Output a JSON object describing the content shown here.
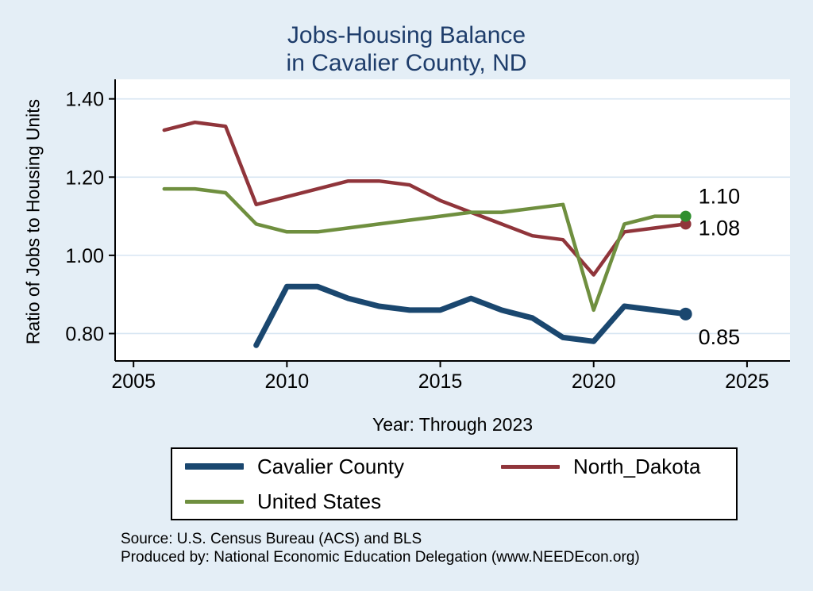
{
  "page": {
    "background_color": "#e4eef6",
    "title_line1": "Jobs-Housing Balance",
    "title_line2": "in Cavalier County, ND",
    "title_color": "#1e3d6b",
    "y_axis_label": "Ratio of Jobs to Housing Units",
    "x_axis_label": "Year: Through 2023",
    "source_line1": "Source: U.S. Census Bureau (ACS) and BLS",
    "source_line2": "Produced by: National Economic Education Delegation (www.NEEDEcon.org)"
  },
  "chart_data": {
    "type": "line",
    "title": "Jobs-Housing Balance in Cavalier County, ND",
    "xlabel": "Year: Through 2023",
    "ylabel": "Ratio of Jobs to Housing Units",
    "xlim": [
      2004.4,
      2026.4
    ],
    "ylim": [
      0.73,
      1.45
    ],
    "grid": true,
    "grid_color": "#d7e5f2",
    "legend_position": "bottom",
    "x_ticks": [
      {
        "v": 2005,
        "label": "2005"
      },
      {
        "v": 2010,
        "label": "2010"
      },
      {
        "v": 2015,
        "label": "2015"
      },
      {
        "v": 2020,
        "label": "2020"
      },
      {
        "v": 2025,
        "label": "2025"
      }
    ],
    "y_ticks": [
      {
        "v": 0.8,
        "label": "0.80"
      },
      {
        "v": 1.0,
        "label": "1.00"
      },
      {
        "v": 1.2,
        "label": "1.20"
      },
      {
        "v": 1.4,
        "label": "1.40"
      }
    ],
    "series": [
      {
        "name": "Cavalier County",
        "color": "#1a476f",
        "line_width": 7,
        "legend_thickness": 8,
        "x": [
          2009,
          2010,
          2011,
          2012,
          2013,
          2014,
          2015,
          2016,
          2017,
          2018,
          2019,
          2020,
          2021,
          2022,
          2023
        ],
        "values": [
          0.77,
          0.92,
          0.92,
          0.89,
          0.87,
          0.86,
          0.86,
          0.89,
          0.86,
          0.84,
          0.79,
          0.78,
          0.87,
          0.86,
          0.85
        ],
        "end_marker_color": "#1a476f",
        "end_marker_radius": 8,
        "end_label": "0.85",
        "end_label_dx": 16,
        "end_label_dy": 38
      },
      {
        "name": "North_Dakota",
        "color": "#90353b",
        "line_width": 4.5,
        "legend_thickness": 5,
        "x": [
          2006,
          2007,
          2008,
          2009,
          2010,
          2011,
          2012,
          2013,
          2014,
          2015,
          2016,
          2017,
          2018,
          2019,
          2020,
          2021,
          2022,
          2023
        ],
        "values": [
          1.32,
          1.34,
          1.33,
          1.13,
          1.15,
          1.17,
          1.19,
          1.19,
          1.18,
          1.14,
          1.11,
          1.08,
          1.05,
          1.04,
          0.95,
          1.06,
          1.07,
          1.08
        ],
        "end_marker_color": "#90353b",
        "end_marker_radius": 7,
        "end_label": "1.08",
        "end_label_dx": 16,
        "end_label_dy": 14
      },
      {
        "name": "United States",
        "color": "#6f8f3f",
        "line_width": 4.5,
        "legend_thickness": 5,
        "x": [
          2006,
          2007,
          2008,
          2009,
          2010,
          2011,
          2012,
          2013,
          2014,
          2015,
          2016,
          2017,
          2018,
          2019,
          2020,
          2021,
          2022,
          2023
        ],
        "values": [
          1.17,
          1.17,
          1.16,
          1.08,
          1.06,
          1.06,
          1.07,
          1.08,
          1.09,
          1.1,
          1.11,
          1.11,
          1.12,
          1.13,
          0.86,
          1.08,
          1.1,
          1.1
        ],
        "end_marker_color": "#2f8f2f",
        "end_marker_radius": 7,
        "end_label": "1.10",
        "end_label_dx": 16,
        "end_label_dy": -16
      }
    ]
  }
}
